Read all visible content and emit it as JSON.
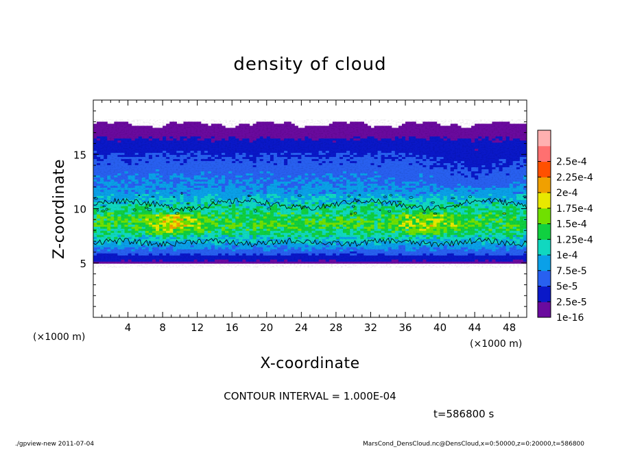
{
  "chart_data": {
    "type": "heatmap",
    "title": "density of cloud",
    "xlabel": "X-coordinate",
    "ylabel": "Z-coordinate",
    "x_unit": "(×1000 m)",
    "y_unit": "(×1000 m)",
    "xlim": [
      0,
      50
    ],
    "ylim": [
      0,
      20
    ],
    "x_ticks": [
      4,
      8,
      12,
      16,
      20,
      24,
      28,
      32,
      36,
      40,
      44,
      48
    ],
    "y_ticks": [
      5,
      10,
      15
    ],
    "colorbar": {
      "labels": [
        "1e-16",
        "2.5e-5",
        "5e-5",
        "7.5e-5",
        "1e-4",
        "1.25e-4",
        "1.5e-4",
        "1.75e-4",
        "2e-4",
        "2.25e-4",
        "2.5e-4"
      ],
      "colors": [
        "#6a0a9e",
        "#0a18c8",
        "#2860f0",
        "#0aa0e8",
        "#10d8c0",
        "#10d040",
        "#70e000",
        "#e8e800",
        "#f0a000",
        "#ff5000",
        "#ff7070",
        "#ffb0b0"
      ]
    },
    "field_profile": {
      "z": [
        4.9,
        5.5,
        6.0,
        7.0,
        8.5,
        9.5,
        10.5,
        11.5,
        13.0,
        15.0,
        16.2,
        17.0,
        18.0
      ],
      "value": [
        1.5e-05,
        3.5e-05,
        6e-05,
        0.0001,
        0.000145,
        0.000135,
        0.00011,
        8.5e-05,
        7e-05,
        5e-05,
        3e-05,
        1.5e-05,
        1e-16
      ]
    },
    "contour_interval": "CONTOUR INTERVAL = 1.000E-04",
    "time": "t=586800 s"
  },
  "footer": {
    "left": "./gpview-new   2011-07-04",
    "right": "MarsCond_DensCloud.nc@DensCloud,x=0:50000,z=0:20000,t=586800"
  }
}
